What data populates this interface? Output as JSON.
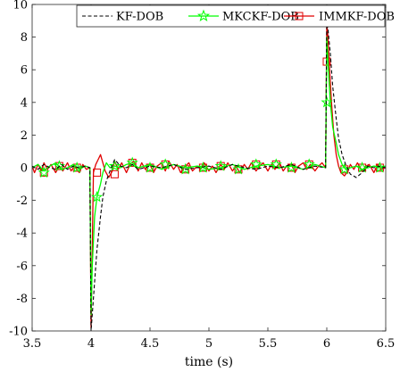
{
  "chart_data": {
    "type": "line",
    "title": "",
    "xlabel": "time (s)",
    "ylabel": "",
    "xlim": [
      3.5,
      6.5
    ],
    "ylim": [
      -10,
      10
    ],
    "xticks": [
      3.5,
      4,
      4.5,
      5,
      5.5,
      6,
      6.5
    ],
    "xtick_labels": [
      "3.5",
      "4",
      "4.5",
      "5",
      "5.5",
      "6",
      "6.5"
    ],
    "yticks": [
      -10,
      -8,
      -6,
      -4,
      -2,
      0,
      2,
      4,
      6,
      8,
      10
    ],
    "ytick_labels": [
      "-10",
      "-8",
      "-6",
      "-4",
      "-2",
      "0",
      "2",
      "4",
      "6",
      "8",
      "10"
    ],
    "grid": false,
    "legend_position": "top-right",
    "series": [
      {
        "name": "KF-DOB",
        "color": "#000000",
        "style": "dashed",
        "marker": "none",
        "x": [
          3.5,
          3.55,
          3.6,
          3.65,
          3.7,
          3.75,
          3.8,
          3.85,
          3.9,
          3.95,
          3.99,
          4.0,
          4.01,
          4.03,
          4.05,
          4.08,
          4.1,
          4.13,
          4.16,
          4.2,
          4.25,
          4.3,
          4.35,
          4.4,
          4.5,
          4.6,
          4.7,
          4.8,
          4.9,
          5.0,
          5.1,
          5.2,
          5.3,
          5.4,
          5.5,
          5.6,
          5.7,
          5.8,
          5.9,
          5.99,
          6.0,
          6.01,
          6.03,
          6.05,
          6.08,
          6.1,
          6.13,
          6.16,
          6.2,
          6.25,
          6.3,
          6.35,
          6.4,
          6.45,
          6.5
        ],
        "y": [
          0.1,
          -0.1,
          0.2,
          0.0,
          -0.1,
          0.2,
          -0.1,
          0.1,
          0.0,
          0.1,
          0.0,
          -10.0,
          -9.0,
          -7.0,
          -5.0,
          -3.0,
          -1.8,
          -0.8,
          -0.2,
          0.5,
          0.1,
          0.0,
          0.2,
          -0.1,
          0.1,
          0.0,
          0.2,
          -0.1,
          0.0,
          0.1,
          -0.1,
          0.2,
          0.0,
          -0.1,
          0.1,
          0.0,
          0.2,
          -0.1,
          0.1,
          0.0,
          9.0,
          8.5,
          7.0,
          5.0,
          3.0,
          1.8,
          0.8,
          0.2,
          -0.4,
          -0.6,
          -0.3,
          0.1,
          0.0,
          0.1,
          0.0
        ]
      },
      {
        "name": "MKCKF-DOB",
        "color": "#00ff00",
        "style": "solid",
        "marker": "star",
        "x": [
          3.5,
          3.55,
          3.6,
          3.65,
          3.7,
          3.75,
          3.8,
          3.85,
          3.9,
          3.95,
          3.99,
          4.0,
          4.01,
          4.03,
          4.05,
          4.08,
          4.1,
          4.13,
          4.16,
          4.2,
          4.25,
          4.3,
          4.35,
          4.4,
          4.5,
          4.6,
          4.7,
          4.8,
          4.9,
          5.0,
          5.1,
          5.2,
          5.3,
          5.4,
          5.5,
          5.6,
          5.7,
          5.8,
          5.9,
          5.99,
          6.0,
          6.01,
          6.03,
          6.05,
          6.08,
          6.1,
          6.13,
          6.16,
          6.2,
          6.25,
          6.3,
          6.35,
          6.4,
          6.45,
          6.5
        ],
        "y": [
          0.0,
          0.2,
          -0.2,
          0.1,
          0.3,
          -0.1,
          0.0,
          0.2,
          -0.1,
          0.1,
          0.0,
          -9.0,
          -6.0,
          -3.0,
          -1.8,
          -1.0,
          -0.3,
          0.3,
          0.0,
          0.1,
          0.0,
          0.2,
          0.3,
          0.0,
          0.2,
          -0.1,
          0.2,
          0.0,
          0.1,
          -0.1,
          0.0,
          0.2,
          -0.1,
          0.1,
          0.2,
          0.0,
          0.1,
          -0.1,
          0.2,
          0.0,
          8.0,
          6.5,
          4.0,
          2.5,
          1.5,
          0.8,
          0.2,
          -0.1,
          0.0,
          0.1,
          -0.1,
          0.0,
          0.1,
          0.0,
          0.1
        ],
        "marker_x": [
          3.6,
          3.73,
          3.88,
          4.05,
          4.2,
          4.35,
          4.5,
          4.63,
          4.8,
          4.95,
          5.1,
          5.25,
          5.4,
          5.57,
          5.7,
          5.85,
          6.0,
          6.15,
          6.3,
          6.45
        ],
        "marker_y": [
          -0.3,
          0.1,
          0.0,
          -1.8,
          0.1,
          0.3,
          0.0,
          0.2,
          -0.1,
          0.0,
          0.1,
          -0.1,
          0.2,
          0.2,
          0.0,
          0.2,
          4.0,
          -0.1,
          0.0,
          0.0
        ]
      },
      {
        "name": "IMMKF-DOB",
        "color": "#e00000",
        "style": "solid",
        "marker": "square",
        "x": [
          3.5,
          3.52,
          3.55,
          3.58,
          3.6,
          3.63,
          3.66,
          3.7,
          3.73,
          3.76,
          3.8,
          3.83,
          3.86,
          3.9,
          3.93,
          3.96,
          3.99,
          4.0,
          4.01,
          4.02,
          4.04,
          4.06,
          4.08,
          4.1,
          4.12,
          4.15,
          4.18,
          4.2,
          4.23,
          4.26,
          4.3,
          4.33,
          4.36,
          4.4,
          4.43,
          4.46,
          4.5,
          4.53,
          4.56,
          4.6,
          4.63,
          4.66,
          4.7,
          4.73,
          4.76,
          4.8,
          4.83,
          4.86,
          4.9,
          4.93,
          4.96,
          5.0,
          5.03,
          5.06,
          5.1,
          5.13,
          5.16,
          5.2,
          5.23,
          5.26,
          5.3,
          5.33,
          5.36,
          5.4,
          5.43,
          5.46,
          5.5,
          5.53,
          5.56,
          5.6,
          5.63,
          5.66,
          5.7,
          5.73,
          5.76,
          5.8,
          5.83,
          5.86,
          5.9,
          5.93,
          5.96,
          5.99,
          6.0,
          6.01,
          6.02,
          6.04,
          6.06,
          6.08,
          6.1,
          6.12,
          6.15,
          6.18,
          6.2,
          6.23,
          6.26,
          6.3,
          6.33,
          6.36,
          6.4,
          6.43,
          6.46,
          6.5
        ],
        "y": [
          0.1,
          -0.3,
          0.2,
          -0.2,
          0.3,
          -0.1,
          0.2,
          -0.3,
          0.1,
          -0.2,
          0.3,
          -0.2,
          0.1,
          -0.3,
          0.2,
          -0.1,
          0.0,
          -9.8,
          -5.0,
          -0.3,
          0.2,
          0.5,
          0.8,
          0.3,
          -0.2,
          -0.6,
          -0.2,
          0.4,
          -0.1,
          0.3,
          -0.3,
          0.2,
          0.4,
          -0.2,
          0.3,
          -0.1,
          0.2,
          -0.3,
          0.1,
          0.3,
          -0.2,
          0.4,
          -0.1,
          0.2,
          -0.3,
          0.1,
          0.3,
          -0.2,
          0.1,
          -0.1,
          0.3,
          -0.2,
          0.1,
          -0.3,
          0.2,
          -0.1,
          0.3,
          -0.2,
          0.1,
          -0.3,
          0.2,
          -0.1,
          0.3,
          -0.2,
          0.1,
          0.3,
          -0.2,
          0.2,
          -0.1,
          0.3,
          -0.2,
          0.1,
          0.2,
          -0.3,
          0.1,
          0.3,
          -0.1,
          0.2,
          -0.2,
          0.1,
          0.3,
          0.0,
          8.8,
          8.0,
          6.5,
          4.0,
          2.0,
          0.8,
          0.1,
          -0.3,
          -0.5,
          -0.2,
          0.2,
          -0.1,
          0.3,
          -0.2,
          0.1,
          0.2,
          -0.3,
          0.2,
          -0.1,
          0.0
        ],
        "marker_x": [
          3.6,
          3.73,
          3.88,
          4.05,
          4.2,
          4.35,
          4.5,
          4.63,
          4.8,
          4.95,
          5.1,
          5.25,
          5.4,
          5.57,
          5.7,
          5.85,
          6.0,
          6.15,
          6.3,
          6.45
        ],
        "marker_y": [
          -0.3,
          0.1,
          0.0,
          -0.3,
          -0.4,
          0.3,
          0.0,
          0.2,
          -0.1,
          0.0,
          0.1,
          -0.1,
          0.2,
          0.2,
          0.0,
          0.2,
          6.5,
          -0.1,
          0.0,
          0.0
        ]
      }
    ]
  }
}
